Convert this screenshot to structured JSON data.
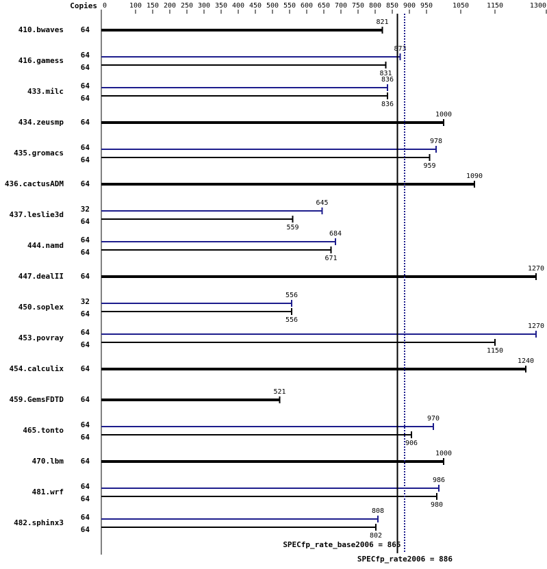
{
  "chart_data": {
    "type": "spec-bar",
    "copies_header": "Copies",
    "categories": [
      "410.bwaves",
      "416.gamess",
      "433.milc",
      "434.zeusmp",
      "435.gromacs",
      "436.cactusADM",
      "437.leslie3d",
      "444.namd",
      "447.dealII",
      "450.soplex",
      "453.povray",
      "454.calculix",
      "459.GemsFDTD",
      "465.tonto",
      "470.lbm",
      "481.wrf",
      "482.sphinx3"
    ],
    "base": {
      "color": "#000000",
      "values": [
        821,
        831,
        836,
        1000,
        959,
        1090,
        559,
        671,
        1270,
        556,
        1150,
        1240,
        521,
        906,
        1000,
        980,
        802
      ],
      "copies": [
        64,
        64,
        64,
        64,
        64,
        64,
        64,
        64,
        64,
        64,
        64,
        64,
        64,
        64,
        64,
        64,
        64
      ]
    },
    "peak": {
      "color": "#1c1c8c",
      "values": [
        null,
        873,
        836,
        null,
        978,
        null,
        645,
        684,
        null,
        556,
        1270,
        null,
        null,
        970,
        null,
        986,
        808
      ],
      "copies": [
        null,
        64,
        64,
        null,
        64,
        null,
        32,
        64,
        null,
        32,
        64,
        null,
        null,
        64,
        null,
        64,
        64
      ]
    },
    "xlim": [
      0,
      1300
    ],
    "xticks": [
      0,
      100,
      150,
      200,
      250,
      300,
      350,
      400,
      450,
      500,
      550,
      600,
      650,
      700,
      750,
      800,
      850,
      900,
      950,
      1050,
      1150,
      1300
    ],
    "reference_lines": [
      {
        "value": 865,
        "label": "SPECfp_rate_base2006 = 865",
        "color": "#000000",
        "style": "solid"
      },
      {
        "value": 886,
        "label": "SPECfp_rate2006 = 886",
        "color": "#1c1c8c",
        "style": "dotted"
      }
    ]
  }
}
